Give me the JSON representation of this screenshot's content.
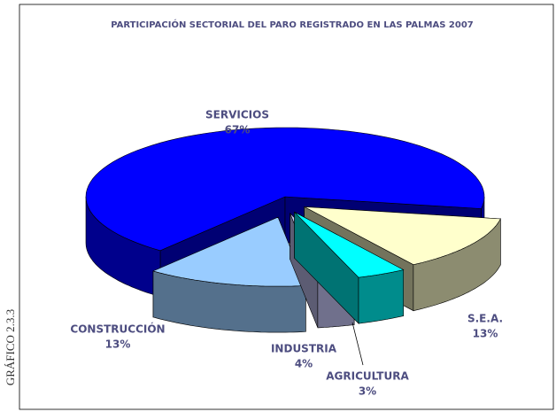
{
  "chart_data": {
    "type": "pie3d",
    "title": "PARTICIPACIÓN SECTORIAL DEL PARO REGISTRADO EN LAS PALMAS 2007",
    "side_label": "GRÁFICO   2.3.3",
    "categories": [
      "SERVICIOS",
      "CONSTRUCCIÓN",
      "INDUSTRIA",
      "AGRICULTURA",
      "S.E.A."
    ],
    "values": [
      67,
      13,
      4,
      3,
      13
    ],
    "value_labels": [
      "67%",
      "13%",
      "4%",
      "3%",
      "13%"
    ],
    "colors": [
      "#0000ff",
      "#ffffcc",
      "#00ffff",
      "#ccccff",
      "#99ccff"
    ]
  }
}
